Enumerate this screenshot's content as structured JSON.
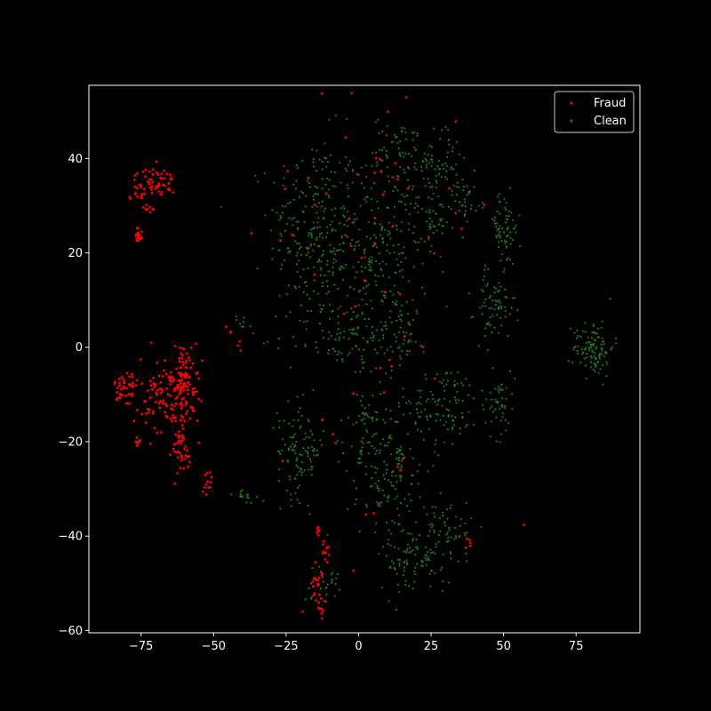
{
  "chart_data": {
    "type": "scatter",
    "title": "",
    "xlabel": "",
    "ylabel": "",
    "xlim": [
      -93,
      97
    ],
    "ylim": [
      -60.5,
      55.5
    ],
    "xticks": [
      -75,
      -50,
      -25,
      0,
      25,
      50,
      75
    ],
    "yticks": [
      -60,
      -40,
      -20,
      0,
      20,
      40
    ],
    "xtick_labels": [
      "−75",
      "−50",
      "−25",
      "0",
      "25",
      "50",
      "75"
    ],
    "ytick_labels": [
      "−60",
      "−40",
      "−20",
      "0",
      "20",
      "40"
    ],
    "grid": false,
    "legend_position": "top-right",
    "background": "#000000",
    "series": [
      {
        "name": "Fraud",
        "color": "#ff0000",
        "clusters": [
          {
            "cx": -70,
            "cy": 35,
            "sx": 3.5,
            "sy": 1.5,
            "n": 55
          },
          {
            "cx": -77,
            "cy": 33,
            "sx": 1.5,
            "sy": 0.8,
            "n": 10
          },
          {
            "cx": -72,
            "cy": 29.5,
            "sx": 1.2,
            "sy": 0.4,
            "n": 8
          },
          {
            "cx": -76,
            "cy": 23.5,
            "sx": 0.8,
            "sy": 1.2,
            "n": 20
          },
          {
            "cx": -80,
            "cy": -9,
            "sx": 2.0,
            "sy": 2.5,
            "n": 45
          },
          {
            "cx": -67,
            "cy": -10,
            "sx": 4.0,
            "sy": 4.0,
            "n": 90
          },
          {
            "cx": -60,
            "cy": -8,
            "sx": 2.5,
            "sy": 4.5,
            "n": 110
          },
          {
            "cx": -62,
            "cy": -22,
            "sx": 2.5,
            "sy": 3.0,
            "n": 40
          },
          {
            "cx": -76,
            "cy": -20,
            "sx": 0.5,
            "sy": 0.5,
            "n": 8
          },
          {
            "cx": -51,
            "cy": -28.5,
            "sx": 1.0,
            "sy": 1.2,
            "n": 12
          },
          {
            "cx": -14,
            "cy": -51,
            "sx": 1.2,
            "sy": 2.5,
            "n": 25
          },
          {
            "cx": -11,
            "cy": -44,
            "sx": 0.8,
            "sy": 1.5,
            "n": 12
          },
          {
            "cx": -14,
            "cy": -38,
            "sx": 0.5,
            "sy": 1.5,
            "n": 6
          },
          {
            "cx": 5,
            "cy": 30,
            "sx": 18,
            "sy": 15,
            "n": 45
          },
          {
            "cx": 5,
            "cy": -25,
            "sx": 20,
            "sy": 15,
            "n": 20
          },
          {
            "cx": -45,
            "cy": 3,
            "sx": 4,
            "sy": 2,
            "n": 6
          },
          {
            "cx": 38,
            "cy": -41.5,
            "sx": 1.0,
            "sy": 1.0,
            "n": 5
          }
        ]
      },
      {
        "name": "Clean",
        "color": "#1f7a1f",
        "clusters": [
          {
            "cx": -15,
            "cy": 25,
            "sx": 8,
            "sy": 10,
            "n": 260
          },
          {
            "cx": 8,
            "cy": 20,
            "sx": 8,
            "sy": 10,
            "n": 230
          },
          {
            "cx": 15,
            "cy": 42,
            "sx": 5,
            "sy": 3.5,
            "n": 60
          },
          {
            "cx": 28,
            "cy": 38,
            "sx": 4,
            "sy": 4,
            "n": 70
          },
          {
            "cx": 37,
            "cy": 31,
            "sx": 2,
            "sy": 2,
            "n": 30
          },
          {
            "cx": 25,
            "cy": 25,
            "sx": 3,
            "sy": 3,
            "n": 40
          },
          {
            "cx": 50,
            "cy": 25,
            "sx": 3,
            "sy": 4,
            "n": 70
          },
          {
            "cx": 47,
            "cy": 8,
            "sx": 3.5,
            "sy": 3.5,
            "n": 70
          },
          {
            "cx": 81,
            "cy": 0,
            "sx": 3.5,
            "sy": 3.0,
            "n": 110
          },
          {
            "cx": -5,
            "cy": 2,
            "sx": 10,
            "sy": 4,
            "n": 100
          },
          {
            "cx": 15,
            "cy": 3,
            "sx": 4,
            "sy": 3,
            "n": 40
          },
          {
            "cx": 30,
            "cy": -12,
            "sx": 6,
            "sy": 4,
            "n": 100
          },
          {
            "cx": 48,
            "cy": -12,
            "sx": 3,
            "sy": 3.5,
            "n": 50
          },
          {
            "cx": -20,
            "cy": -22,
            "sx": 4,
            "sy": 5,
            "n": 110
          },
          {
            "cx": 10,
            "cy": -25,
            "sx": 7,
            "sy": 8,
            "n": 180
          },
          {
            "cx": 20,
            "cy": -45,
            "sx": 6,
            "sy": 4,
            "n": 100
          },
          {
            "cx": 32,
            "cy": -38,
            "sx": 4,
            "sy": 3,
            "n": 45
          },
          {
            "cx": -13,
            "cy": -50,
            "sx": 3,
            "sy": 2,
            "n": 30
          },
          {
            "cx": 3,
            "cy": -15,
            "sx": 3,
            "sy": 2,
            "n": 30
          },
          {
            "cx": -40,
            "cy": -31,
            "sx": 2,
            "sy": 0.8,
            "n": 15
          },
          {
            "cx": -40,
            "cy": 5,
            "sx": 1.5,
            "sy": 1,
            "n": 8
          }
        ]
      }
    ]
  }
}
